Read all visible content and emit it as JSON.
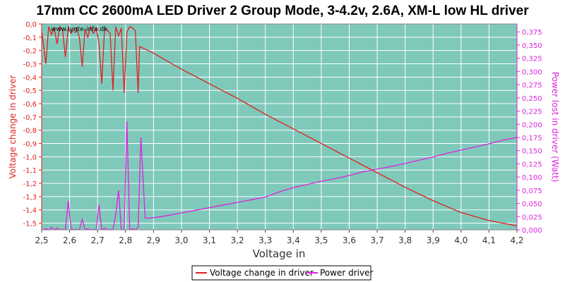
{
  "chart_data": {
    "type": "line",
    "title": "17mm CC 2600mA LED Driver 2 Group Mode, 3-4.2v, 2.6A, XM-L low HL driver",
    "watermark": "www.lygte-info.dk",
    "xlabel": "Voltage in",
    "ylabel_left": "Voltage change in driver",
    "ylabel_right": "Power lost in driver (Watt)",
    "xlim": [
      2.5,
      4.2
    ],
    "ylim_left": [
      -1.55,
      0.0
    ],
    "ylim_right": [
      0.0,
      0.39
    ],
    "grid": true,
    "legend_position": "bottom",
    "background_color": "#7fc9bb",
    "grid_color": "#ffffff",
    "x_ticks": [
      "2,5",
      "2,6",
      "2,7",
      "2,8",
      "2,9",
      "3,0",
      "3,1",
      "3,2",
      "3,3",
      "3,4",
      "3,5",
      "3,6",
      "3,7",
      "3,8",
      "3,9",
      "4,0",
      "4,1",
      "4,2"
    ],
    "x_tick_values": [
      2.5,
      2.6,
      2.7,
      2.8,
      2.9,
      3.0,
      3.1,
      3.2,
      3.3,
      3.4,
      3.5,
      3.6,
      3.7,
      3.8,
      3.9,
      4.0,
      4.1,
      4.2
    ],
    "y_ticks_left": [
      "0,0",
      "-0,1",
      "-0,2",
      "-0,3",
      "-0,4",
      "-0,5",
      "-0,6",
      "-0,7",
      "-0,8",
      "-0,9",
      "-1,0",
      "-1,1",
      "-1,2",
      "-1,3",
      "-1,4",
      "-1,5"
    ],
    "y_tick_values_left": [
      0.0,
      -0.1,
      -0.2,
      -0.3,
      -0.4,
      -0.5,
      -0.6,
      -0.7,
      -0.8,
      -0.9,
      -1.0,
      -1.1,
      -1.2,
      -1.3,
      -1.4,
      -1.5
    ],
    "y_ticks_right": [
      "0,000",
      "0,025",
      "0,050",
      "0,075",
      "0,100",
      "0,125",
      "0,150",
      "0,175",
      "0,200",
      "0,225",
      "0,250",
      "0,275",
      "0,300",
      "0,325",
      "0,350",
      "0,375"
    ],
    "y_tick_values_right": [
      0.0,
      0.025,
      0.05,
      0.075,
      0.1,
      0.125,
      0.15,
      0.175,
      0.2,
      0.225,
      0.25,
      0.275,
      0.3,
      0.325,
      0.35,
      0.375
    ],
    "series": [
      {
        "name": "Voltage change in driver",
        "axis": "left",
        "color": "#dd2222",
        "x": [
          2.5,
          2.515,
          2.525,
          2.535,
          2.545,
          2.555,
          2.565,
          2.575,
          2.585,
          2.595,
          2.605,
          2.615,
          2.625,
          2.635,
          2.645,
          2.655,
          2.665,
          2.675,
          2.685,
          2.695,
          2.705,
          2.715,
          2.725,
          2.735,
          2.745,
          2.755,
          2.765,
          2.775,
          2.785,
          2.795,
          2.805,
          2.815,
          2.825,
          2.835,
          2.845,
          2.85,
          2.9,
          3.0,
          3.1,
          3.2,
          3.3,
          3.4,
          3.5,
          3.6,
          3.7,
          3.8,
          3.9,
          4.0,
          4.1,
          4.2
        ],
        "y": [
          -0.05,
          -0.3,
          -0.02,
          -0.08,
          -0.03,
          -0.15,
          -0.02,
          -0.05,
          -0.25,
          -0.03,
          -0.07,
          -0.04,
          -0.03,
          -0.1,
          -0.32,
          -0.04,
          -0.1,
          -0.02,
          -0.07,
          -0.03,
          -0.15,
          -0.45,
          -0.03,
          -0.05,
          -0.07,
          -0.5,
          -0.02,
          -0.09,
          -0.03,
          -0.52,
          -0.06,
          -0.02,
          -0.03,
          -0.05,
          -0.52,
          -0.17,
          -0.22,
          -0.34,
          -0.45,
          -0.56,
          -0.68,
          -0.79,
          -0.9,
          -1.01,
          -1.12,
          -1.23,
          -1.33,
          -1.42,
          -1.48,
          -1.52
        ]
      },
      {
        "name": "Power driver",
        "axis": "right",
        "color": "#dd22dd",
        "x": [
          2.505,
          2.515,
          2.525,
          2.535,
          2.545,
          2.555,
          2.565,
          2.575,
          2.585,
          2.595,
          2.605,
          2.615,
          2.625,
          2.635,
          2.645,
          2.655,
          2.665,
          2.675,
          2.685,
          2.695,
          2.705,
          2.715,
          2.725,
          2.735,
          2.745,
          2.755,
          2.765,
          2.775,
          2.785,
          2.795,
          2.805,
          2.815,
          2.825,
          2.835,
          2.845,
          2.855,
          2.87,
          2.9,
          2.95,
          3.0,
          3.05,
          3.1,
          3.15,
          3.2,
          3.25,
          3.3,
          3.35,
          3.4,
          3.45,
          3.5,
          3.55,
          3.6,
          3.65,
          3.7,
          3.75,
          3.8,
          3.85,
          3.9,
          3.95,
          4.0,
          4.05,
          4.1,
          4.15,
          4.2
        ],
        "y": [
          0.0,
          0.002,
          0.0,
          0.005,
          0.0,
          0.003,
          0.0,
          0.001,
          0.0,
          0.055,
          0.003,
          0.0,
          0.001,
          0.0,
          0.02,
          0.0,
          0.002,
          0.0,
          0.001,
          0.0,
          0.048,
          0.0,
          0.003,
          0.0,
          0.001,
          0.0,
          0.03,
          0.075,
          0.0,
          0.0,
          0.205,
          0.0,
          0.002,
          0.0,
          0.005,
          0.175,
          0.022,
          0.023,
          0.027,
          0.032,
          0.037,
          0.042,
          0.047,
          0.052,
          0.057,
          0.062,
          0.072,
          0.08,
          0.086,
          0.092,
          0.097,
          0.103,
          0.11,
          0.115,
          0.12,
          0.126,
          0.132,
          0.138,
          0.145,
          0.151,
          0.157,
          0.163,
          0.17,
          0.175
        ]
      }
    ]
  }
}
